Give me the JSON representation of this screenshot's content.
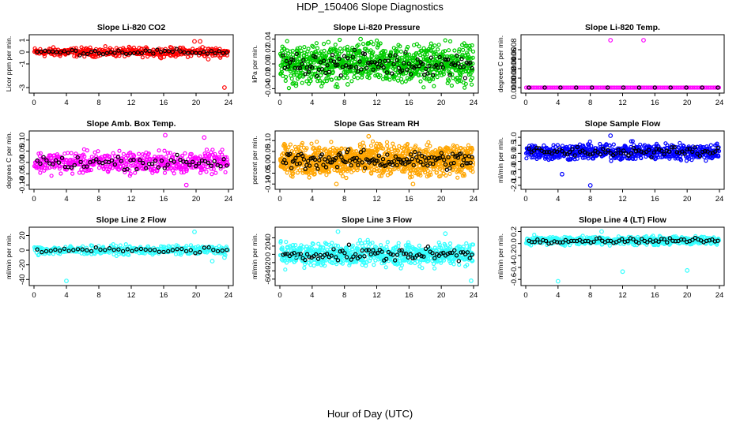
{
  "page": {
    "title": "HDP_150406  Slope Diagnostics",
    "xlabel": "Hour of Day (UTC)"
  },
  "chart_data": [
    {
      "type": "scatter",
      "title": "Slope Li-820 CO2",
      "ylabel": "Licor ppm per min.",
      "xlim": [
        0,
        24
      ],
      "xticks": [
        0,
        4,
        8,
        12,
        16,
        20,
        24
      ],
      "ylim": [
        -3.2,
        1.2
      ],
      "yticks": [
        1,
        0,
        -1,
        -3
      ],
      "ytick_labels": [
        "1",
        "0",
        "-1",
        "-3"
      ],
      "color": "#ff0000",
      "series": [
        {
          "name": "slope",
          "generator": "band",
          "center": 0,
          "spread": 0.55,
          "n": 400
        }
      ],
      "extra": [
        {
          "x": 19.8,
          "y": 0.9
        },
        {
          "x": 20.5,
          "y": 0.9
        },
        {
          "x": 20.8,
          "y": 0.4
        },
        {
          "x": 21.5,
          "y": -0.6
        },
        {
          "x": 23.5,
          "y": -3.0
        }
      ]
    },
    {
      "type": "scatter",
      "title": "Slope Li-820 Pressure",
      "ylabel": "kPa per min.",
      "xlim": [
        0,
        24
      ],
      "xticks": [
        0,
        4,
        8,
        12,
        16,
        20,
        24
      ],
      "ylim": [
        -0.042,
        0.042
      ],
      "yticks": [
        0.04,
        0.02,
        0.0,
        -0.02,
        -0.04
      ],
      "ytick_labels": [
        "0.04",
        "0.02",
        "0.00",
        "-0.02",
        "-0.04"
      ],
      "color": "#00cc00",
      "series": [
        {
          "name": "slope",
          "generator": "band",
          "center": 0,
          "spread": 0.045,
          "n": 900
        }
      ],
      "extra": [
        {
          "x": 6.0,
          "y": 0.035
        },
        {
          "x": 10.0,
          "y": 0.04
        },
        {
          "x": 11.3,
          "y": 0.035
        },
        {
          "x": 2.0,
          "y": -0.035
        },
        {
          "x": 8.4,
          "y": -0.033
        }
      ]
    },
    {
      "type": "scatter",
      "title": "Slope Li-820 Temp.",
      "ylabel": "degrees C per min.",
      "xlim": [
        0,
        24
      ],
      "xticks": [
        0,
        4,
        8,
        12,
        16,
        20,
        24
      ],
      "ylim": [
        -5e-05,
        0.00105
      ],
      "yticks": [
        0.0008,
        0.0006,
        0.0004,
        0.0002,
        0.0
      ],
      "ytick_labels": [
        "0.0008",
        "0.0006",
        "0.0004",
        "0.0002",
        "0.0000"
      ],
      "color": "#ff00ff",
      "series": [
        {
          "name": "slope",
          "generator": "flat",
          "center": 0,
          "spread": 0,
          "n": 110
        }
      ],
      "extra": [
        {
          "x": 10.5,
          "y": 0.001
        },
        {
          "x": 14.6,
          "y": 0.001
        }
      ]
    },
    {
      "type": "scatter",
      "title": "Slope Amb. Box Temp.",
      "ylabel": "degrees C per min.",
      "xlim": [
        0,
        24
      ],
      "xticks": [
        0,
        4,
        8,
        12,
        16,
        20,
        24
      ],
      "ylim": [
        -0.105,
        0.125
      ],
      "yticks": [
        0.1,
        0.05,
        0.0,
        -0.05,
        -0.1
      ],
      "ytick_labels": [
        "0.10",
        "0.05",
        "0.00",
        "-0.05",
        "-0.10"
      ],
      "color": "#ff00ff",
      "series": [
        {
          "name": "slope",
          "generator": "band",
          "center": 0,
          "spread": 0.07,
          "n": 500
        }
      ],
      "extra": [
        {
          "x": 16.2,
          "y": 0.12
        },
        {
          "x": 21.0,
          "y": 0.11
        },
        {
          "x": 18.8,
          "y": -0.1
        }
      ]
    },
    {
      "type": "scatter",
      "title": "Slope Gas Stream RH",
      "ylabel": "percent per min.",
      "xlim": [
        0,
        24
      ],
      "xticks": [
        0,
        4,
        8,
        12,
        16,
        20,
        24
      ],
      "ylim": [
        -0.11,
        0.13
      ],
      "yticks": [
        0.1,
        0.05,
        0.0,
        -0.05,
        -0.1
      ],
      "ytick_labels": [
        "0.10",
        "0.05",
        "0.00",
        "-0.05",
        "-0.10"
      ],
      "color": "#ffa500",
      "series": [
        {
          "name": "slope",
          "generator": "band",
          "center": 0.01,
          "spread": 0.1,
          "n": 1100
        }
      ],
      "extra": [
        {
          "x": 11.0,
          "y": 0.12
        },
        {
          "x": 7.0,
          "y": -0.1
        },
        {
          "x": 16.5,
          "y": -0.1
        }
      ]
    },
    {
      "type": "scatter",
      "title": "Slope Sample Flow",
      "ylabel": "ml/min per min.",
      "xlim": [
        0,
        24
      ],
      "xticks": [
        0,
        4,
        8,
        12,
        16,
        20,
        24
      ],
      "ylim": [
        -2.05,
        1.2
      ],
      "yticks": [
        1.0,
        0.5,
        0.0,
        -0.5,
        -1.0,
        -1.5,
        -2.0
      ],
      "ytick_labels": [
        "1.0",
        "0.5",
        "0.0",
        "-0.5",
        "-1.0",
        "-1.5",
        "-2.0"
      ],
      "color": "#0000ff",
      "series": [
        {
          "name": "slope",
          "generator": "band",
          "center": 0.1,
          "spread": 0.75,
          "n": 600
        }
      ],
      "extra": [
        {
          "x": 10.5,
          "y": 1.1
        },
        {
          "x": 8.0,
          "y": -2.0
        },
        {
          "x": 4.5,
          "y": -1.3
        }
      ]
    },
    {
      "type": "scatter",
      "title": "Slope Line 2 Flow",
      "ylabel": "ml/min per min.",
      "xlim": [
        0,
        24
      ],
      "xticks": [
        0,
        4,
        8,
        12,
        16,
        20,
        24
      ],
      "ylim": [
        -44,
        27
      ],
      "yticks": [
        20,
        0,
        -20,
        -40
      ],
      "ytick_labels": [
        "20",
        "0",
        "-20",
        "-40"
      ],
      "color": "#33ffff",
      "series": [
        {
          "name": "slope",
          "generator": "band",
          "center": 0,
          "spread": 9,
          "n": 350
        }
      ],
      "extra": [
        {
          "x": 4.0,
          "y": -42
        },
        {
          "x": 19.8,
          "y": 25
        },
        {
          "x": 23.5,
          "y": -10
        },
        {
          "x": 22.0,
          "y": -15
        }
      ]
    },
    {
      "type": "scatter",
      "title": "Slope Line 3 Flow",
      "ylabel": "ml/min per min.",
      "xlim": [
        0,
        24
      ],
      "xticks": [
        0,
        4,
        8,
        12,
        16,
        20,
        24
      ],
      "ylim": [
        -68,
        58
      ],
      "yticks": [
        40,
        20,
        0,
        -20,
        -40,
        -60
      ],
      "ytick_labels": [
        "40",
        "20",
        "0",
        "-20",
        "-40",
        "-60"
      ],
      "color": "#33ffff",
      "series": [
        {
          "name": "slope",
          "generator": "band",
          "center": 0,
          "spread": 40,
          "n": 700
        }
      ],
      "extra": [
        {
          "x": 7.2,
          "y": 55
        },
        {
          "x": 20.5,
          "y": 50
        },
        {
          "x": 23.7,
          "y": -64
        },
        {
          "x": 2.0,
          "y": -6
        }
      ]
    },
    {
      "type": "scatter",
      "title": "Slope Line 4 (LT) Flow",
      "ylabel": "ml/min per min.",
      "xlim": [
        0,
        24
      ],
      "xticks": [
        0,
        4,
        8,
        12,
        16,
        20,
        24
      ],
      "ylim": [
        -0.65,
        0.22
      ],
      "yticks": [
        0.2,
        0.0,
        -0.2,
        -0.4,
        -0.6
      ],
      "ytick_labels": [
        "0.2",
        "0.0",
        "-0.2",
        "-0.4",
        "-0.6"
      ],
      "color": "#33ffff",
      "series": [
        {
          "name": "slope",
          "generator": "band",
          "center": 0.05,
          "spread": 0.1,
          "n": 550
        }
      ],
      "extra": [
        {
          "x": 4.0,
          "y": -0.63
        },
        {
          "x": 12.0,
          "y": -0.47
        },
        {
          "x": 20.0,
          "y": -0.45
        },
        {
          "x": 9.4,
          "y": 0.2
        }
      ]
    }
  ]
}
